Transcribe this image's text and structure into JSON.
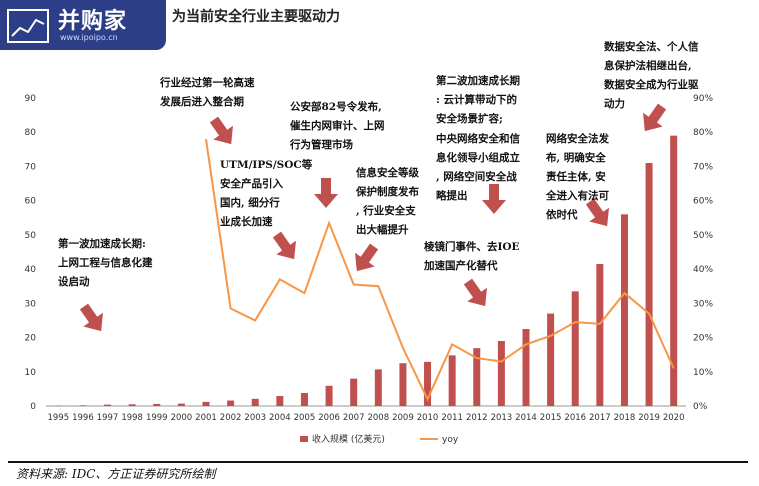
{
  "header": {
    "logo_text": "并购家",
    "logo_url": "www.ipoipo.cn",
    "title": "为当前安全行业主要驱动力"
  },
  "annotations": [
    {
      "id": "a1",
      "text": "第一波加速成长期:\n上网工程与信息化建\n设启动"
    },
    {
      "id": "a2",
      "text": "行业经过第一轮高速\n发展后进入整合期"
    },
    {
      "id": "a3",
      "text": "UTM/IPS/SOC等\n安全产品引入\n国内, 细分行\n业成长加速"
    },
    {
      "id": "a4",
      "text": "公安部82号令发布,\n催生内网审计、上网\n行为管理市场"
    },
    {
      "id": "a5",
      "text": "信息安全等级\n保护制度发布\n, 行业安全支\n出大幅提升"
    },
    {
      "id": "a6",
      "text": "棱镜门事件、去IOE\n加速国产化替代"
    },
    {
      "id": "a7",
      "text": "第二波加速成长期\n: 云计算带动下的\n安全场景扩容;"
    },
    {
      "id": "a8",
      "text": "中央网络安全和信\n息化领导小组成立\n, 网络空间安全战\n略提出"
    },
    {
      "id": "a9",
      "text": "网络安全法发\n布, 明确安全\n责任主体, 安\n全进入有法可\n依时代"
    },
    {
      "id": "a10",
      "text": "数据安全法、个人信\n息保护法相继出台,\n数据安全成为行业驱\n动力"
    }
  ],
  "colors": {
    "bar": "#c0504d",
    "line": "#f79646",
    "arrow": "#c0504d"
  },
  "source": "资料来源: IDC、方正证券研究所绘制",
  "chart_data": {
    "type": "bar",
    "categories": [
      "1995",
      "1996",
      "1997",
      "1998",
      "1999",
      "2000",
      "2001",
      "2002",
      "2003",
      "2004",
      "2005",
      "2006",
      "2007",
      "2008",
      "2009",
      "2010",
      "2011",
      "2012",
      "2013",
      "2014",
      "2015",
      "2016",
      "2017",
      "2018",
      "2019",
      "2020"
    ],
    "series": [
      {
        "name": "收入规模 (亿美元)",
        "type": "bar",
        "axis": "left",
        "values": [
          0.1,
          0.2,
          0.4,
          0.5,
          0.6,
          0.7,
          1.2,
          1.6,
          2.1,
          2.9,
          3.8,
          5.9,
          8.0,
          10.7,
          12.5,
          12.9,
          14.8,
          16.9,
          19.0,
          22.5,
          27.0,
          33.5,
          41.5,
          56.0,
          71.0,
          79.0
        ]
      },
      {
        "name": "yoy",
        "type": "line",
        "axis": "right",
        "values": [
          null,
          null,
          null,
          null,
          null,
          null,
          78,
          28.5,
          25,
          37,
          33,
          53.5,
          35.5,
          35,
          17,
          2,
          18,
          14,
          13,
          18,
          20.5,
          24.5,
          24,
          33,
          27,
          11
        ]
      }
    ],
    "y_left": {
      "min": 0,
      "max": 90,
      "ticks": [
        0,
        10,
        20,
        30,
        40,
        50,
        60,
        70,
        80,
        90
      ]
    },
    "y_right": {
      "min": 0,
      "max": 90,
      "ticks": [
        "0%",
        "10%",
        "20%",
        "30%",
        "40%",
        "50%",
        "60%",
        "70%",
        "80%",
        "90%"
      ]
    },
    "legend": "bottom",
    "grid": false
  }
}
